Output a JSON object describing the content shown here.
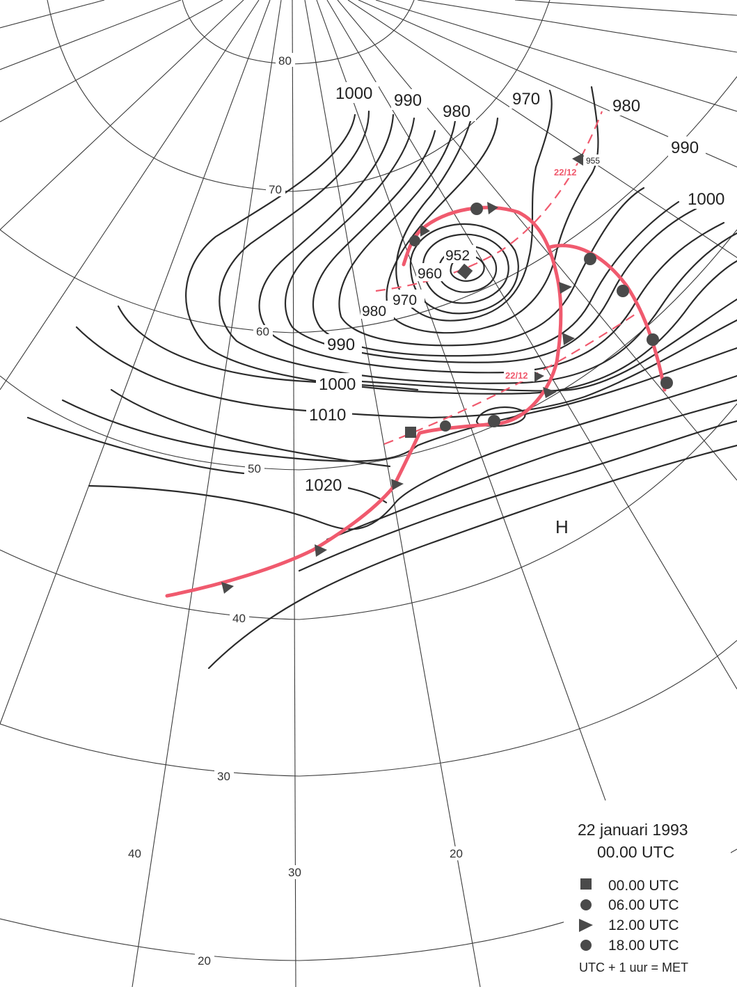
{
  "latitudes": [
    "80",
    "70",
    "60",
    "50",
    "40",
    "30",
    "20"
  ],
  "longitudes": [
    "40",
    "30",
    "20"
  ],
  "isobar_labels": {
    "i1000_top": "1000",
    "i990_top": "990",
    "i980_top": "980",
    "i970_top": "970",
    "i980_right": "980",
    "i990_right": "990",
    "i1000_right": "1000",
    "center": "952",
    "i960": "960",
    "i970_inner": "970",
    "i980_inner": "980",
    "i990_low": "990",
    "i1000_low": "1000",
    "i1010": "1010",
    "i1020": "1020"
  },
  "track_labels": {
    "pressure_955": "955",
    "date_upper": "22/12",
    "date_lower": "22/12"
  },
  "high_label": "H",
  "legend": {
    "title_line1": "22 januari 1993",
    "title_line2": "00.00 UTC",
    "items": [
      "00.00 UTC",
      "06.00 UTC",
      "12.00 UTC",
      "18.00 UTC"
    ],
    "note": "UTC + 1 uur = MET"
  },
  "colors": {
    "front": "#f05a6e",
    "isobar": "#2b2b2b",
    "symbol": "#4a4a4a"
  }
}
